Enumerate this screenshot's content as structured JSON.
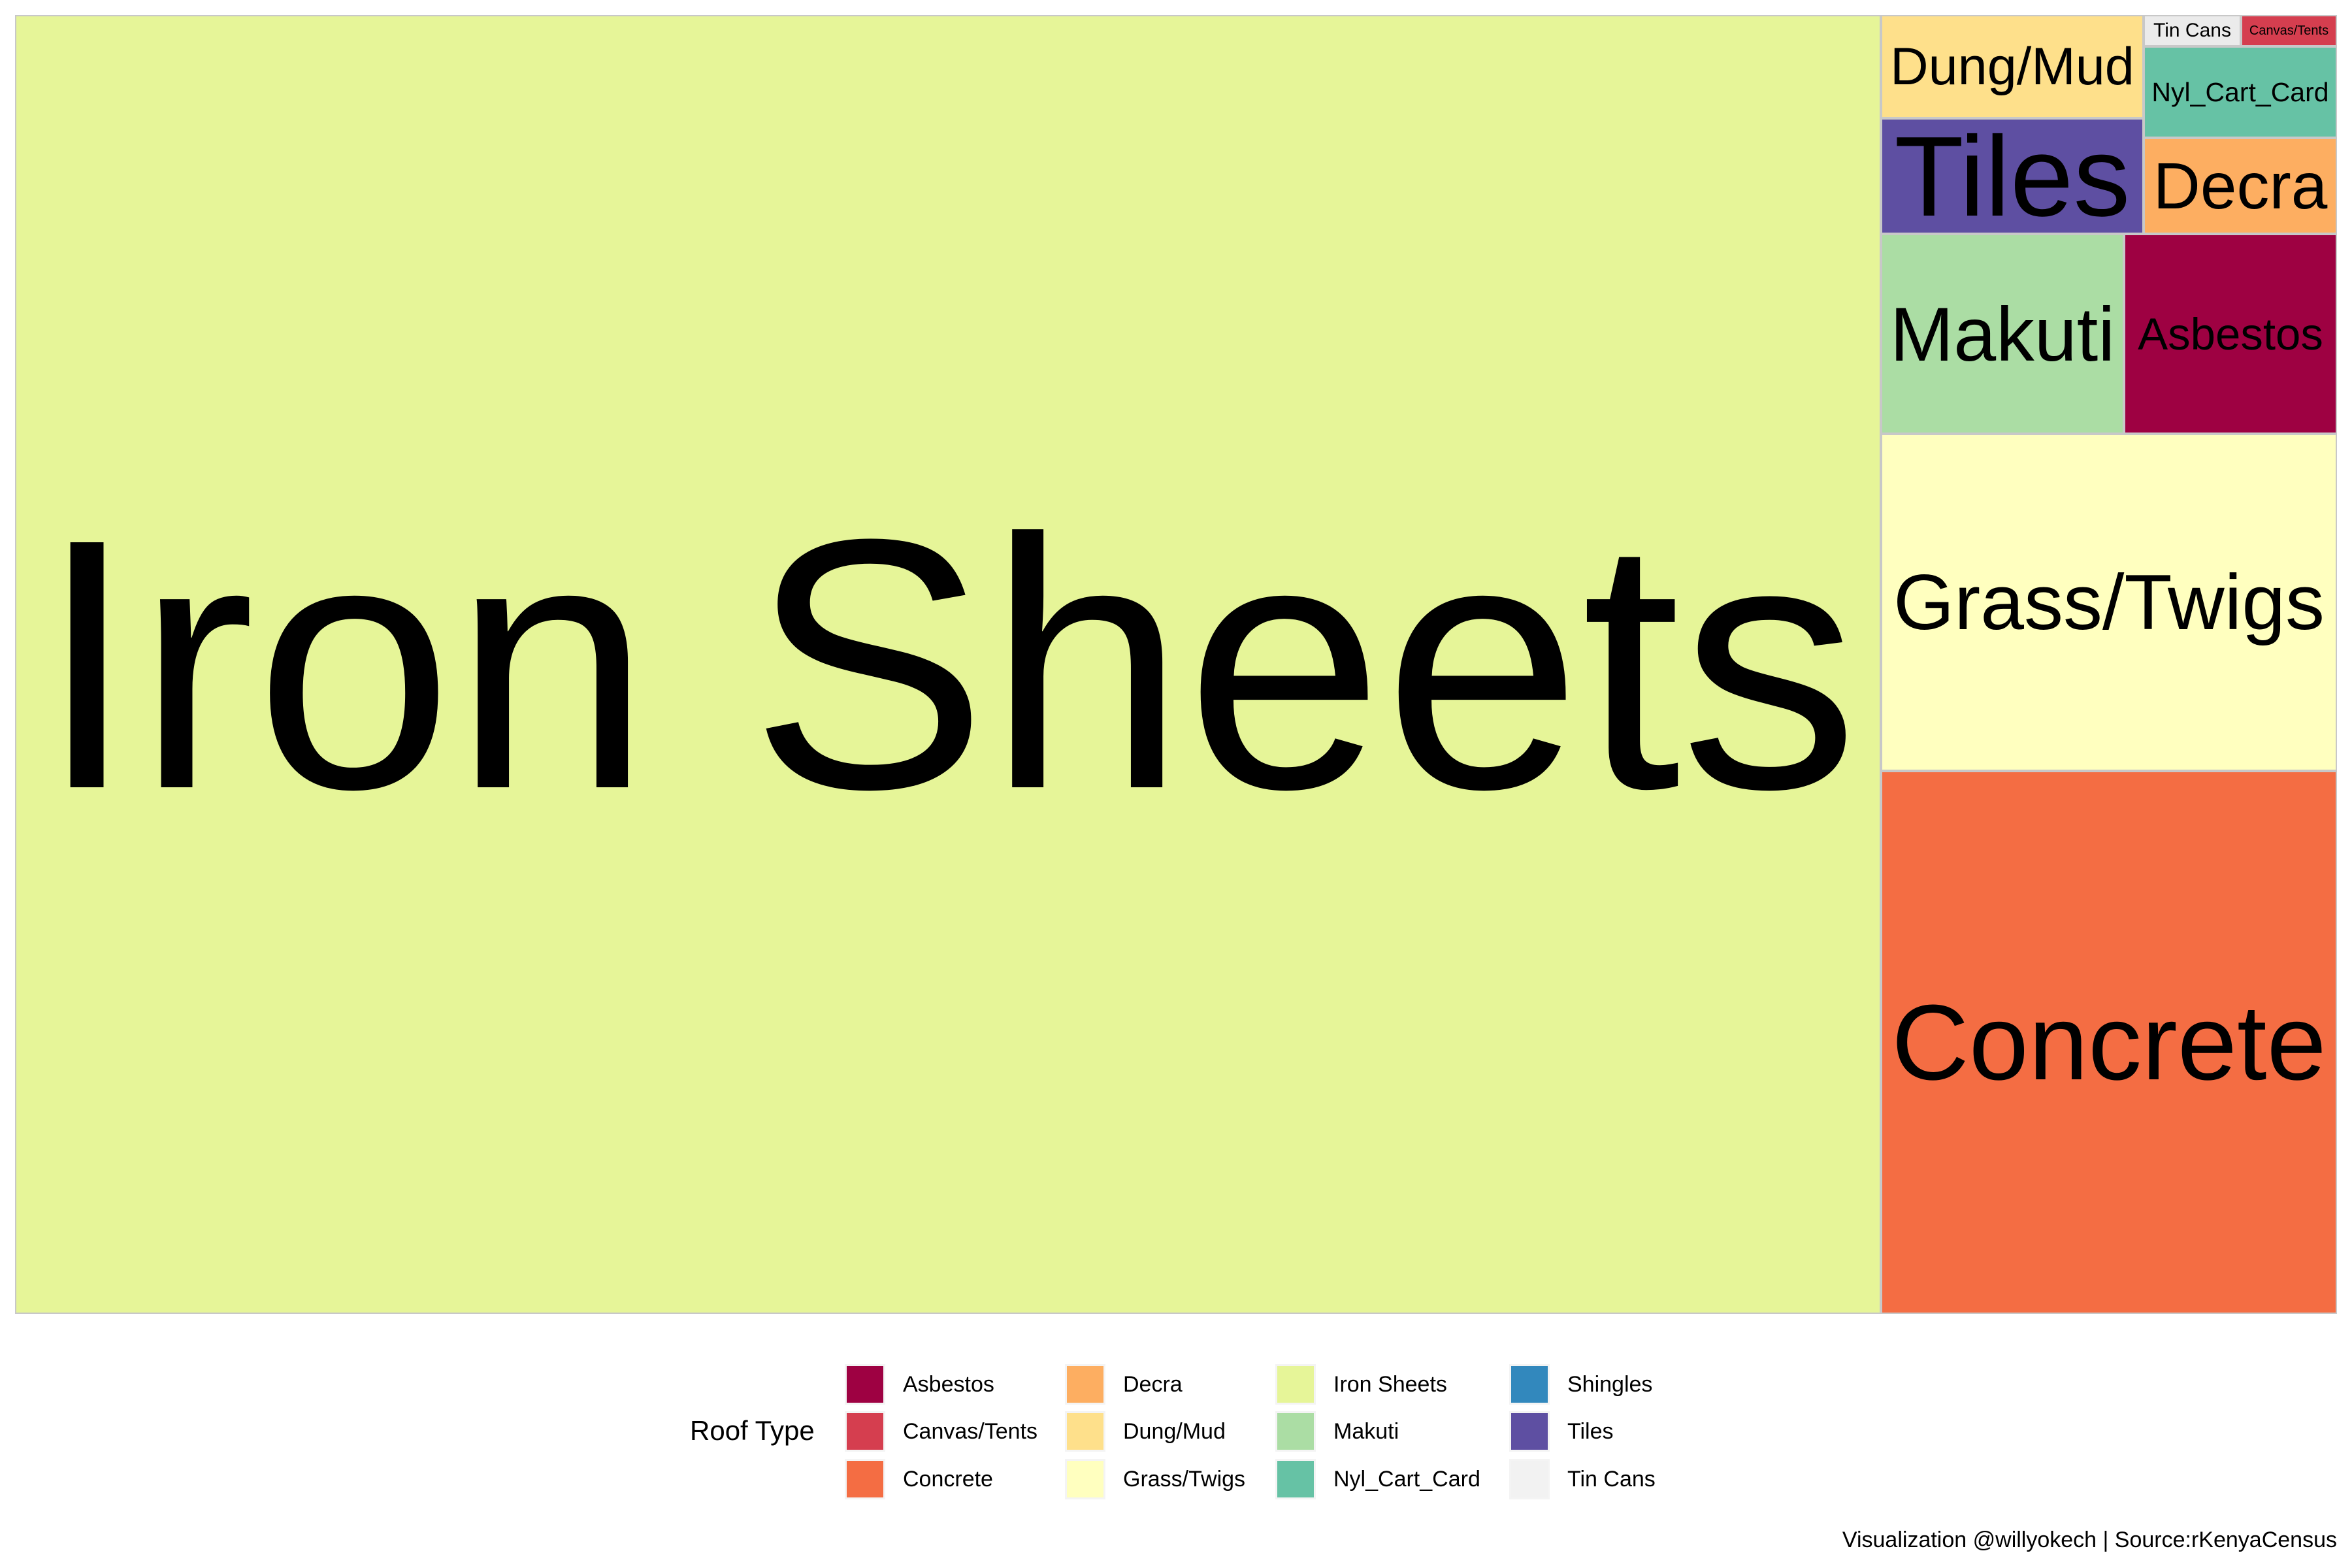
{
  "chart_data": {
    "type": "treemap",
    "title": "",
    "items": [
      {
        "label": "Iron Sheets",
        "approx_share_pct": 80.4,
        "color": "#E6F598"
      },
      {
        "label": "Concrete",
        "approx_share_pct": 8.2,
        "color": "#F46D43"
      },
      {
        "label": "Grass/Twigs",
        "approx_share_pct": 5.1,
        "color": "#FFFFBF"
      },
      {
        "label": "Makuti",
        "approx_share_pct": 1.6,
        "color": "#ABDDA4"
      },
      {
        "label": "Asbestos",
        "approx_share_pct": 1.4,
        "color": "#9E0142"
      },
      {
        "label": "Tiles",
        "approx_share_pct": 1.0,
        "color": "#5E4FA2"
      },
      {
        "label": "Dung/Mud",
        "approx_share_pct": 0.9,
        "color": "#FEE08B"
      },
      {
        "label": "Decra",
        "approx_share_pct": 0.6,
        "color": "#FDAE61"
      },
      {
        "label": "Nyl_Cart_Card",
        "approx_share_pct": 0.6,
        "color": "#66C2A5"
      },
      {
        "label": "Tin Cans",
        "approx_share_pct": 0.1,
        "color": "#EBEBEB"
      },
      {
        "label": "Canvas/Tents",
        "approx_share_pct": 0.1,
        "color": "#D53E4F"
      }
    ],
    "legend": {
      "title": "Roof Type",
      "placement": "bottom",
      "entries": [
        {
          "label": "Asbestos",
          "color": "#9E0142"
        },
        {
          "label": "Canvas/Tents",
          "color": "#D53E4F"
        },
        {
          "label": "Concrete",
          "color": "#F46D43"
        },
        {
          "label": "Decra",
          "color": "#FDAE61"
        },
        {
          "label": "Dung/Mud",
          "color": "#FEE08B"
        },
        {
          "label": "Grass/Twigs",
          "color": "#FFFFBF"
        },
        {
          "label": "Iron Sheets",
          "color": "#E6F598"
        },
        {
          "label": "Makuti",
          "color": "#ABDDA4"
        },
        {
          "label": "Nyl_Cart_Card",
          "color": "#66C2A5"
        },
        {
          "label": "Shingles",
          "color": "#3288BD"
        },
        {
          "label": "Tiles",
          "color": "#5E4FA2"
        },
        {
          "label": "Tin Cans",
          "color": "#F2F2F2"
        }
      ]
    },
    "caption": "Visualization @willyokech | Source:rKenyaCensus"
  }
}
